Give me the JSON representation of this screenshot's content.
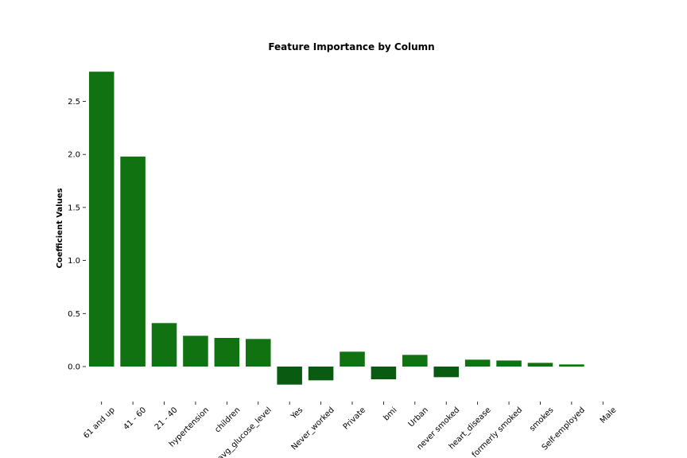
{
  "chart_data": {
    "type": "bar",
    "title": "Feature Importance by Column",
    "xlabel": "",
    "ylabel": "Coefficient Values",
    "categories": [
      "61 and up",
      "41 - 60",
      "21 - 40",
      "hypertension",
      "children",
      "avg_glucose_level",
      "Yes",
      "Never_worked",
      "Private",
      "bmi",
      "Urban",
      "never smoked",
      "heart_disease",
      "formerly smoked",
      "smokes",
      "Self-employed",
      "Male"
    ],
    "values": [
      2.78,
      1.98,
      0.41,
      0.29,
      0.27,
      0.26,
      -0.17,
      -0.13,
      0.14,
      -0.12,
      0.11,
      -0.1,
      0.065,
      0.057,
      0.035,
      0.02,
      0.0
    ],
    "yticks": [
      0.0,
      0.5,
      1.0,
      1.5,
      2.0,
      2.5
    ],
    "ytick_labels": [
      "0.0",
      "0.5",
      "1.0",
      "1.5",
      "2.0",
      "2.5"
    ],
    "ylim": [
      -0.3,
      2.8
    ],
    "grid": false,
    "legend": "none",
    "colors": {
      "positive": "#117211",
      "negative": "#0b5a12"
    }
  }
}
